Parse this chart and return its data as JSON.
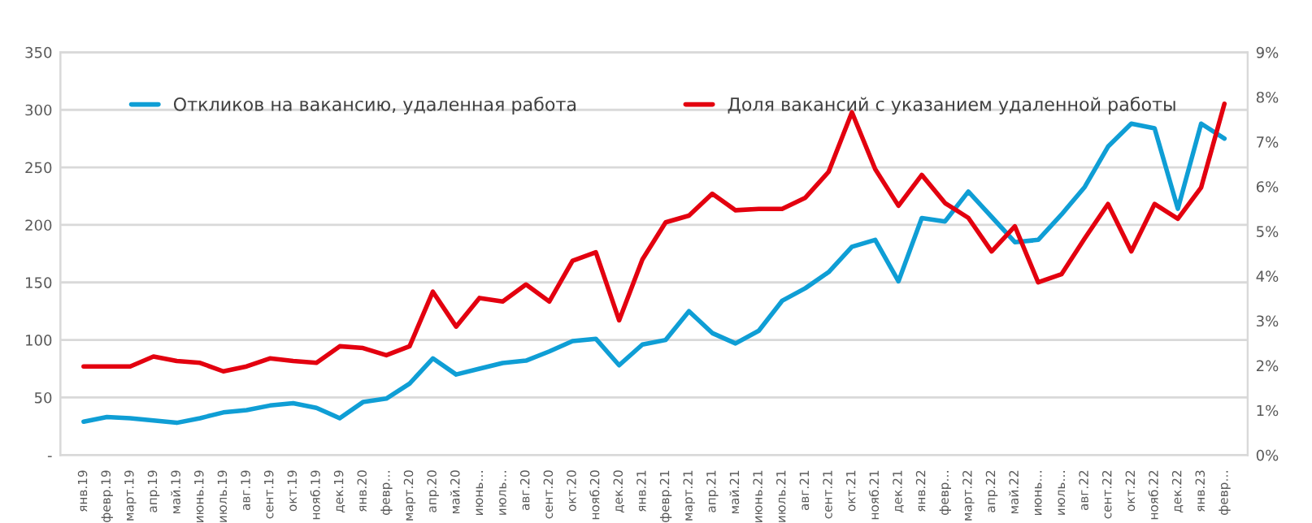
{
  "chart_data": {
    "type": "line",
    "categories": [
      "янв.19",
      "февр.19",
      "март.19",
      "апр.19",
      "май.19",
      "июнь.19",
      "июль.19",
      "авг.19",
      "сент.19",
      "окт.19",
      "нояб.19",
      "дек.19",
      "янв.20",
      "февр…",
      "март.20",
      "апр.20",
      "май.20",
      "июнь…",
      "июль…",
      "авг.20",
      "сент.20",
      "окт.20",
      "нояб.20",
      "дек.20",
      "янв.21",
      "февр.21",
      "март.21",
      "апр.21",
      "май.21",
      "июнь.21",
      "июль.21",
      "авг.21",
      "сент.21",
      "окт.21",
      "нояб.21",
      "дек.21",
      "янв.22",
      "февр…",
      "март.22",
      "апр.22",
      "май.22",
      "июнь…",
      "июль…",
      "авг.22",
      "сент.22",
      "окт.22",
      "нояб.22",
      "дек.22",
      "янв.23",
      "февр…"
    ],
    "series": [
      {
        "name": "Откликов на вакансию, удаленная работа",
        "color": "#0f9ed5",
        "values": [
          29,
          33,
          32,
          30,
          28,
          32,
          37,
          39,
          43,
          45,
          41,
          32,
          46,
          49,
          62,
          84,
          70,
          75,
          80,
          82,
          90,
          99,
          101,
          78,
          96,
          100,
          125,
          106,
          97,
          108,
          134,
          145,
          159,
          181,
          187,
          151,
          206,
          203,
          229,
          207,
          185,
          187,
          209,
          233,
          268,
          288,
          284,
          214,
          288,
          275
        ]
      },
      {
        "name": "Доля вакансий с указанием удаленной работы",
        "color": "#e3000f",
        "axis": "y2",
        "values": [
          1.98,
          1.98,
          1.98,
          2.2,
          2.1,
          2.06,
          1.87,
          1.98,
          2.16,
          2.1,
          2.06,
          2.43,
          2.39,
          2.23,
          2.43,
          3.65,
          2.87,
          3.51,
          3.43,
          3.81,
          3.43,
          4.34,
          4.53,
          3.01,
          4.37,
          5.2,
          5.35,
          5.84,
          5.47,
          5.5,
          5.5,
          5.75,
          6.33,
          7.66,
          6.39,
          5.57,
          6.26,
          5.63,
          5.3,
          4.55,
          5.11,
          3.86,
          4.04,
          4.84,
          5.61,
          4.55,
          5.61,
          5.28,
          5.98,
          7.85
        ]
      }
    ],
    "ylim": [
      0,
      350
    ],
    "yticks": [
      {
        "value": 0,
        "label": "-"
      },
      50,
      100,
      150,
      200,
      250,
      300,
      350
    ],
    "y2lim": [
      0,
      9
    ],
    "y2ticks": [
      {
        "value": 0,
        "label": "0%"
      },
      {
        "value": 1,
        "label": "1%"
      },
      {
        "value": 2,
        "label": "2%"
      },
      {
        "value": 3,
        "label": "3%"
      },
      {
        "value": 4,
        "label": "4%"
      },
      {
        "value": 5,
        "label": "5%"
      },
      {
        "value": 6,
        "label": "6%"
      },
      {
        "value": 7,
        "label": "7%"
      },
      {
        "value": 8,
        "label": "8%"
      },
      {
        "value": 9,
        "label": "9%"
      }
    ],
    "grid": "y",
    "legend": "top",
    "marker": "none",
    "line_style": "solid"
  }
}
